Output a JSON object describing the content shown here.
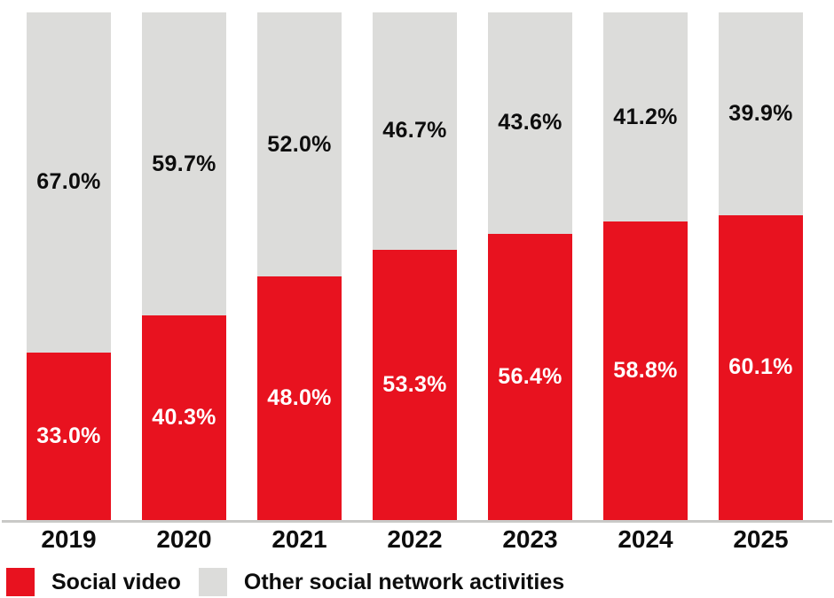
{
  "chart_data": {
    "type": "bar",
    "stacked": true,
    "title": "",
    "categories": [
      "2019",
      "2020",
      "2021",
      "2022",
      "2023",
      "2024",
      "2025"
    ],
    "series": [
      {
        "name": "Social video",
        "slug": "social-video",
        "color": "#E8121F",
        "label_color": "#FFFFFF",
        "values": [
          33.0,
          40.3,
          48.0,
          53.3,
          56.4,
          58.8,
          60.1
        ],
        "labels": [
          "33.0%",
          "40.3%",
          "48.0%",
          "53.3%",
          "56.4%",
          "58.8%",
          "60.1%"
        ]
      },
      {
        "name": "Other social network activities",
        "slug": "other-social-network-activities",
        "color": "#DCDCDA",
        "label_color": "#0D0D0D",
        "values": [
          67.0,
          59.7,
          52.0,
          46.7,
          43.6,
          41.2,
          39.9
        ],
        "labels": [
          "67.0%",
          "59.7%",
          "52.0%",
          "46.7%",
          "43.6%",
          "41.2%",
          "39.9%"
        ]
      }
    ],
    "value_suffix": "%",
    "ylim": [
      0,
      100
    ],
    "grid": false,
    "legend_position": "bottom-left",
    "axis_line_color": "#C9C9C7",
    "background": "#FFFFFF",
    "text_color": "#0D0D0D"
  },
  "legend": {
    "items": [
      {
        "label": "Social video",
        "color": "#E8121F"
      },
      {
        "label": "Other social network activities",
        "color": "#DCDCDA"
      }
    ]
  }
}
